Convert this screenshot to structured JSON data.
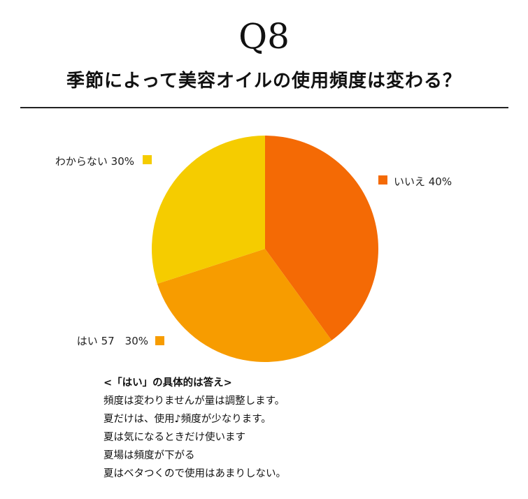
{
  "question": {
    "number": "Q8",
    "title": "季節によって美容オイルの使用頻度は変わる？"
  },
  "chart_data": {
    "type": "pie",
    "title": "",
    "slices": [
      {
        "label": "いいえ 40%",
        "value": 40,
        "color": "#f46a05"
      },
      {
        "label": "はい 57　30%",
        "value": 30,
        "color": "#f79c00"
      },
      {
        "label": "わからない 30%",
        "value": 30,
        "color": "#f5cc00"
      }
    ],
    "start_angle_deg": 0,
    "direction": "clockwise",
    "legend_placement": "labels beside slices"
  },
  "answers": {
    "heading": "<「はい」の具体的は答え>",
    "items": [
      "頻度は変わりませんが量は調整します。",
      "夏だけは、使用♪頻度が少なります。",
      "夏は気になるときだけ使います",
      "夏場は頻度が下がる",
      "夏はベタつくので使用はあまりしない。"
    ]
  }
}
